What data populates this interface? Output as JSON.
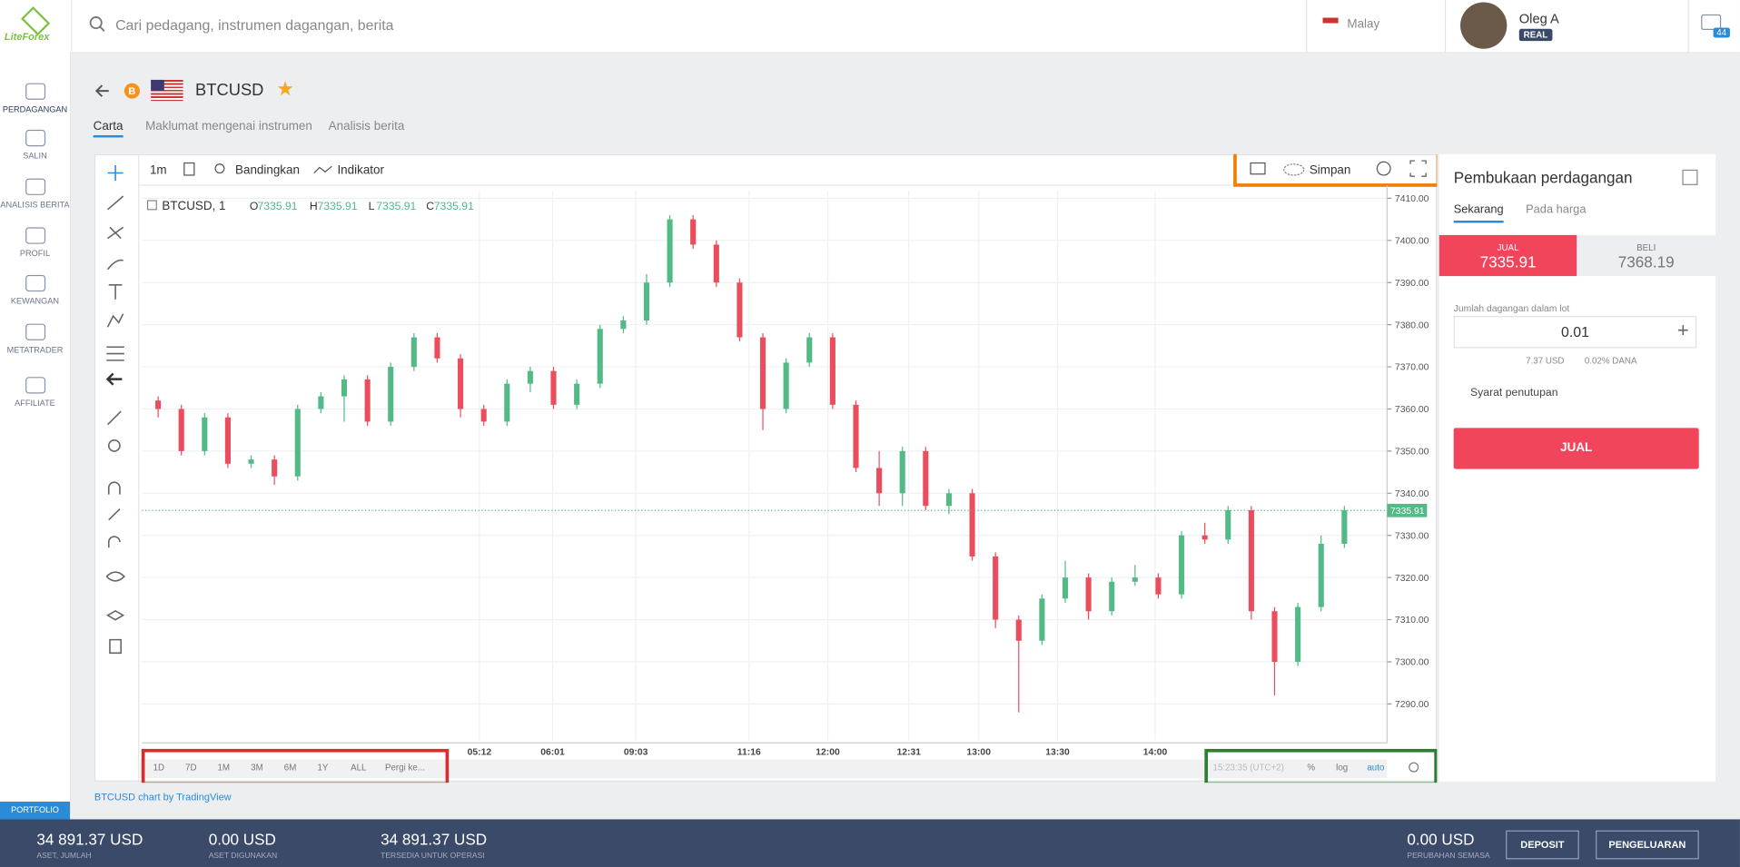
{
  "header": {
    "logo": "LiteForex",
    "search": "Cari pedagang, instrumen dagangan, berita",
    "language": "Malay",
    "user": "Oleg A",
    "account": "REAL",
    "messages": "44"
  },
  "sidebar": {
    "items": [
      "PERDAGANGAN",
      "SALIN",
      "ANALISIS BERITA",
      "PROFIL",
      "KEWANGAN",
      "METATRADER",
      "AFFILIATE"
    ],
    "portfolio": "PORTFOLIO"
  },
  "instrument": {
    "badge": "B",
    "symbol": "BTCUSD"
  },
  "tabs": [
    "Carta",
    "Maklumat mengenai instrumen",
    "Analisis berita"
  ],
  "toolbar": {
    "interval": "1m",
    "compare": "Bandingkan",
    "indicators": "Indikator",
    "save": "Simpan"
  },
  "chart_data": {
    "type": "candlestick",
    "legend": "BTCUSD, 1",
    "ohlc_labels": [
      "O",
      "H",
      "L",
      "C"
    ],
    "ohlc": [
      7335.91,
      7335.91,
      7335.91,
      7335.91
    ],
    "last": 7335.91,
    "candles": [
      [
        7362,
        7363,
        7358,
        7360
      ],
      [
        7360,
        7361,
        7349,
        7350
      ],
      [
        7350,
        7359,
        7349,
        7358
      ],
      [
        7358,
        7359,
        7346,
        7347
      ],
      [
        7347,
        7349,
        7346,
        7348
      ],
      [
        7348,
        7349,
        7342,
        7344
      ],
      [
        7344,
        7361,
        7343,
        7360
      ],
      [
        7360,
        7364,
        7359,
        7363
      ],
      [
        7363,
        7368,
        7357,
        7367
      ],
      [
        7367,
        7368,
        7356,
        7357
      ],
      [
        7357,
        7371,
        7356,
        7370
      ],
      [
        7370,
        7378,
        7369,
        7377
      ],
      [
        7377,
        7378,
        7371,
        7372
      ],
      [
        7372,
        7373,
        7358,
        7360
      ],
      [
        7360,
        7361,
        7356,
        7357
      ],
      [
        7357,
        7367,
        7356,
        7366
      ],
      [
        7366,
        7370,
        7364,
        7369
      ],
      [
        7369,
        7370,
        7360,
        7361
      ],
      [
        7361,
        7367,
        7360,
        7366
      ],
      [
        7366,
        7380,
        7365,
        7379
      ],
      [
        7379,
        7382,
        7378,
        7381
      ],
      [
        7381,
        7392,
        7380,
        7390
      ],
      [
        7390,
        7406,
        7389,
        7405
      ],
      [
        7405,
        7406,
        7398,
        7399
      ],
      [
        7399,
        7400,
        7389,
        7390
      ],
      [
        7390,
        7391,
        7376,
        7377
      ],
      [
        7377,
        7378,
        7355,
        7360
      ],
      [
        7360,
        7372,
        7359,
        7371
      ],
      [
        7371,
        7378,
        7370,
        7377
      ],
      [
        7377,
        7378,
        7360,
        7361
      ],
      [
        7361,
        7362,
        7345,
        7346
      ],
      [
        7346,
        7350,
        7337,
        7340
      ],
      [
        7340,
        7351,
        7337,
        7350
      ],
      [
        7350,
        7351,
        7336,
        7337
      ],
      [
        7337,
        7341,
        7335,
        7340
      ],
      [
        7340,
        7341,
        7324,
        7325
      ],
      [
        7325,
        7326,
        7308,
        7310
      ],
      [
        7310,
        7311,
        7288,
        7305
      ],
      [
        7305,
        7316,
        7304,
        7315
      ],
      [
        7315,
        7324,
        7314,
        7320
      ],
      [
        7320,
        7321,
        7310,
        7312
      ],
      [
        7312,
        7320,
        7311,
        7319
      ],
      [
        7319,
        7323,
        7318,
        7320
      ],
      [
        7320,
        7321,
        7315,
        7316
      ],
      [
        7316,
        7331,
        7315,
        7330
      ],
      [
        7330,
        7333,
        7328,
        7329
      ],
      [
        7329,
        7337,
        7328,
        7336
      ],
      [
        7336,
        7337,
        7310,
        7312
      ],
      [
        7312,
        7313,
        7292,
        7300
      ],
      [
        7300,
        7314,
        7299,
        7313
      ],
      [
        7313,
        7330,
        7312,
        7328
      ],
      [
        7328,
        7337,
        7327,
        7336
      ]
    ],
    "up_color": "#53b987",
    "down_color": "#eb4d5c",
    "ylim": [
      7281.3,
      7411.8
    ],
    "yticks": [
      {
        "value": 7290,
        "label": "7290.00"
      },
      {
        "value": 7300,
        "label": "7300.00"
      },
      {
        "value": 7310,
        "label": "7310.00"
      },
      {
        "value": 7320,
        "label": "7320.00"
      },
      {
        "value": 7330,
        "label": "7330.00"
      },
      {
        "value": 7340,
        "label": "7340.00"
      },
      {
        "value": 7350,
        "label": "7350.00"
      },
      {
        "value": 7360,
        "label": "7360.00"
      },
      {
        "value": 7370,
        "label": "7370.00"
      },
      {
        "value": 7380,
        "label": "7380.00"
      },
      {
        "value": 7390,
        "label": "7390.00"
      },
      {
        "value": 7400,
        "label": "7400.00"
      },
      {
        "value": 7410,
        "label": "7410.00"
      }
    ],
    "xticks": [
      "05:12",
      "06:01",
      "09:03",
      "11:16",
      "12:00",
      "12:31",
      "13:00",
      "13:30",
      "14:00"
    ],
    "grid": true
  },
  "ranges": [
    "1D",
    "7D",
    "1M",
    "3M",
    "6M",
    "1Y",
    "ALL",
    "Pergi ke..."
  ],
  "status": {
    "clock": "15:23:35 (UTC+2)",
    "percent": "%",
    "log": "log",
    "auto": "auto"
  },
  "credit": "BTCUSD chart by TradingView",
  "panel": {
    "title": "Pembukaan perdagangan",
    "tabs": [
      "Sekarang",
      "Pada harga"
    ],
    "sell_label": "JUAL",
    "sell": "7335.91",
    "buy_label": "BELI",
    "buy": "7368.19",
    "lot_label": "Jumlah dagangan dalam lot",
    "lot": "0.01",
    "cost": "7.37 USD",
    "margin": "0.02% DANA",
    "closing": "Syarat penutupan",
    "button": "JUAL"
  },
  "footer": {
    "stats": [
      {
        "value": "34 891.37 USD",
        "label": "ASET, JUMLAH"
      },
      {
        "value": "0.00 USD",
        "label": "ASET DIGUNAKAN"
      },
      {
        "value": "34 891.37 USD",
        "label": "TERSEDIA UNTUK OPERASI"
      }
    ],
    "change": {
      "value": "0.00 USD",
      "label": "PERUBAHAN SEMASA"
    },
    "deposit": "DEPOSIT",
    "withdraw": "PENGELUARAN"
  }
}
